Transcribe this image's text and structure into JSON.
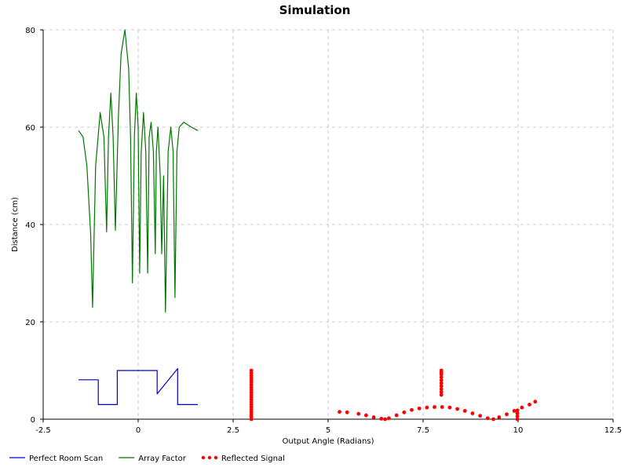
{
  "chart_data": {
    "type": "line",
    "title": "Simulation",
    "xlabel": "Output Angle (Radians)",
    "ylabel": "Distance (cm)",
    "xlim": [
      -2.5,
      12.5
    ],
    "ylim": [
      0,
      80
    ],
    "xticks": [
      "-2.5",
      "0",
      "2.5",
      "5",
      "7.5",
      "10",
      "12.5"
    ],
    "xtick_values": [
      -2.5,
      0,
      2.5,
      5,
      7.5,
      10,
      12.5
    ],
    "yticks": [
      "0",
      "20",
      "40",
      "60",
      "80"
    ],
    "ytick_values": [
      0,
      20,
      40,
      60,
      80
    ],
    "grid": true,
    "legend_position": "bottom",
    "series": [
      {
        "name": "Perfect Room Scan",
        "style": "line",
        "color": "#0000cc",
        "x": [
          -1.57,
          -1.05,
          -1.05,
          -0.55,
          -0.55,
          0.5,
          0.5,
          1.04,
          1.04,
          1.57
        ],
        "y": [
          8.1,
          8.1,
          3.0,
          3.0,
          10.0,
          10.0,
          5.2,
          10.4,
          3.0,
          3.0
        ]
      },
      {
        "name": "Array Factor",
        "style": "line",
        "color": "#007700",
        "x": [
          -1.57,
          -1.45,
          -1.35,
          -1.25,
          -1.2,
          -1.12,
          -1.0,
          -0.9,
          -0.83,
          -0.78,
          -0.72,
          -0.66,
          -0.6,
          -0.52,
          -0.45,
          -0.35,
          -0.25,
          -0.2,
          -0.15,
          -0.1,
          -0.05,
          0.0,
          0.04,
          0.08,
          0.14,
          0.2,
          0.25,
          0.29,
          0.34,
          0.4,
          0.45,
          0.48,
          0.52,
          0.58,
          0.62,
          0.67,
          0.72,
          0.79,
          0.86,
          0.92,
          0.97,
          1.02,
          1.08,
          1.2,
          1.3,
          1.4,
          1.57
        ],
        "y": [
          59.3,
          58.0,
          52.0,
          38.0,
          23.0,
          52.0,
          63.0,
          58.0,
          38.5,
          58.0,
          67.0,
          58.0,
          38.8,
          62.0,
          75.0,
          80.0,
          72.0,
          58.0,
          28.0,
          58.0,
          67.0,
          60.0,
          30.0,
          55.0,
          63.0,
          55.0,
          30.0,
          58.0,
          61.0,
          55.0,
          34.0,
          55.0,
          60.0,
          50.0,
          34.0,
          50.0,
          22.0,
          55.0,
          60.0,
          55.0,
          25.0,
          55.0,
          60.0,
          61.0,
          60.5,
          60.0,
          59.3
        ]
      },
      {
        "name": "Reflected Signal",
        "style": "dots",
        "color": "#ff0000",
        "x": [
          5.3,
          5.5,
          5.8,
          6.0,
          6.2,
          6.4,
          6.5,
          6.6,
          6.8,
          7.0,
          7.2,
          7.4,
          7.6,
          7.8,
          8.0,
          8.2,
          8.4,
          8.6,
          8.8,
          9.0,
          9.2,
          9.35,
          9.5,
          9.7,
          9.9,
          10.1,
          10.3,
          10.45,
          2.98,
          2.98,
          2.98,
          2.98,
          2.98,
          2.98,
          2.98,
          2.98,
          2.98,
          2.98,
          2.98,
          2.98,
          2.98,
          2.98,
          2.98,
          2.98,
          2.98,
          2.98,
          2.98,
          2.98,
          2.98,
          7.98,
          7.98,
          7.98,
          7.98,
          7.98,
          7.98,
          7.98,
          7.98,
          7.98,
          7.98,
          9.98,
          9.98,
          9.98,
          9.98
        ],
        "y": [
          1.5,
          1.4,
          1.1,
          0.8,
          0.4,
          0.1,
          0.0,
          0.2,
          0.8,
          1.4,
          1.9,
          2.2,
          2.4,
          2.5,
          2.5,
          2.4,
          2.1,
          1.7,
          1.2,
          0.7,
          0.2,
          0.0,
          0.4,
          1.0,
          1.7,
          2.4,
          3.0,
          3.6,
          0.0,
          0.5,
          1.0,
          1.5,
          2.0,
          2.5,
          3.0,
          3.5,
          4.0,
          4.5,
          5.0,
          5.5,
          6.0,
          6.5,
          7.0,
          7.5,
          8.0,
          8.5,
          9.0,
          9.5,
          10.0,
          5.0,
          5.6,
          6.2,
          6.8,
          7.4,
          8.0,
          8.6,
          9.2,
          9.6,
          10.0,
          0.0,
          0.6,
          1.2,
          1.8
        ]
      }
    ]
  }
}
